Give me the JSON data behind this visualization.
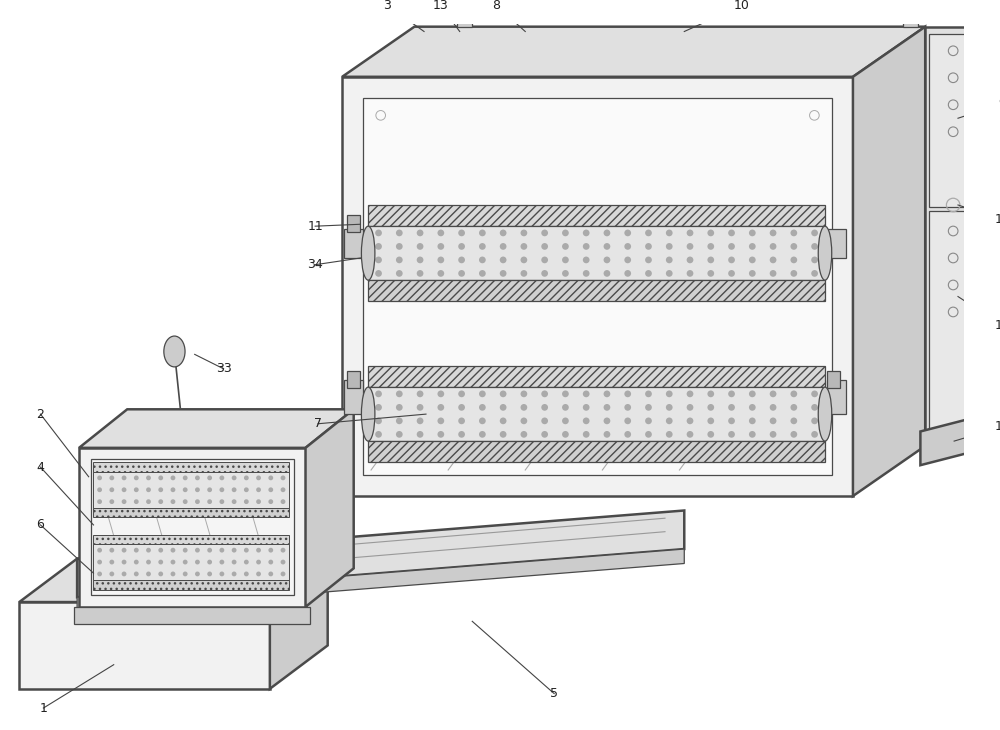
{
  "bg_color": "#ffffff",
  "lc": "#4a4a4a",
  "lw_main": 1.8,
  "lw_thin": 0.9,
  "lw_med": 1.2,
  "fc_light": "#f2f2f2",
  "fc_mid": "#e0e0e0",
  "fc_dark": "#cccccc",
  "fc_darker": "#b8b8b8",
  "fc_roller": "#e8e8e8",
  "label_fs": 9,
  "label_color": "#222222"
}
